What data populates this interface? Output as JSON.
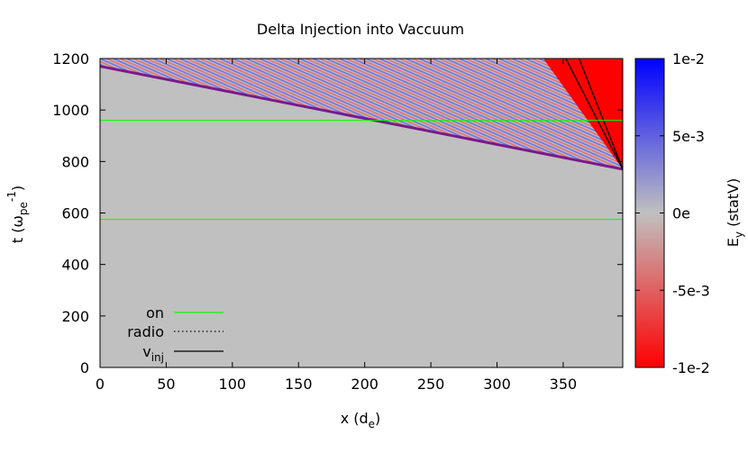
{
  "chart_data": {
    "type": "heatmap",
    "title": "Delta Injection into Vaccuum",
    "xlabel": {
      "base": "x (d",
      "sub": "e",
      "end": ")"
    },
    "ylabel": {
      "base": "t (ω",
      "sub": "pe",
      "sup": "-1",
      "end": ")"
    },
    "xlim": [
      0,
      395
    ],
    "ylim": [
      0,
      1200
    ],
    "xticks": [
      0,
      50,
      100,
      150,
      200,
      250,
      300,
      350
    ],
    "yticks": [
      0,
      200,
      400,
      600,
      800,
      1000,
      1200
    ],
    "colorbar": {
      "label": {
        "base": "E",
        "sub": "y",
        "end": " (statV)"
      },
      "range": [
        -0.01,
        0.01
      ],
      "tick_labels": [
        "1e-2",
        "5e-3",
        "0e",
        "-5e-3",
        "-1e-2"
      ],
      "tick_values": [
        0.01,
        0.005,
        0,
        -0.005,
        -0.01
      ],
      "colors": {
        "max": "#0000ff",
        "zero": "#c0c0c0",
        "min": "#ff0000"
      }
    },
    "background_value": 0,
    "wave_front": {
      "from": [
        0,
        1170
      ],
      "to": [
        395,
        770
      ]
    },
    "injection_lines": [
      {
        "from": [
          352,
          1200
        ],
        "to": [
          395,
          770
        ]
      },
      {
        "from": [
          362,
          1200
        ],
        "to": [
          395,
          770
        ]
      }
    ],
    "saturated_region": {
      "points": [
        [
          335,
          1200
        ],
        [
          395,
          1200
        ],
        [
          395,
          770
        ]
      ],
      "value": -0.01
    },
    "on_lines": [
      {
        "t": 960,
        "x_range": [
          0,
          395
        ]
      },
      {
        "t": 575,
        "x_range": [
          0,
          395
        ]
      }
    ],
    "legend": {
      "position": "bottom-left",
      "items": [
        {
          "label": "on",
          "style": "solid",
          "color": "#00ff00"
        },
        {
          "label": "radio",
          "style": "dotted",
          "color": "#000000"
        },
        {
          "label": {
            "base": "v",
            "sub": "inj"
          },
          "style": "solid",
          "color": "#000000"
        }
      ]
    }
  }
}
